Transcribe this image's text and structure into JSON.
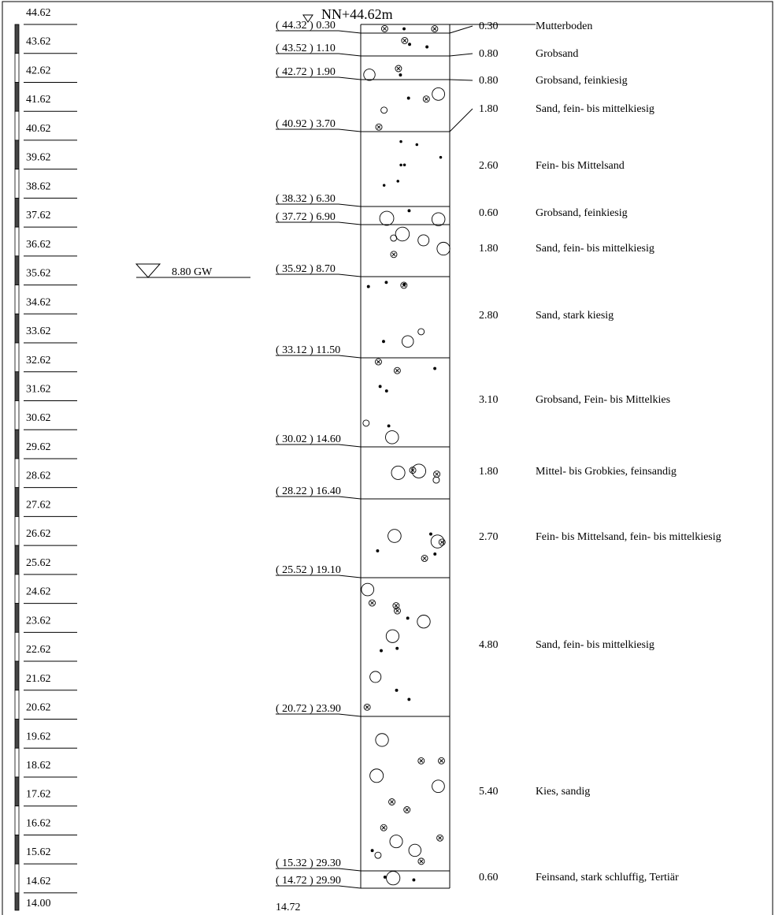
{
  "header": {
    "title": "NN+44.62m"
  },
  "scale": [
    "44.62",
    "43.62",
    "42.62",
    "41.62",
    "40.62",
    "39.62",
    "38.62",
    "37.62",
    "36.62",
    "35.62",
    "34.62",
    "33.62",
    "32.62",
    "31.62",
    "30.62",
    "29.62",
    "28.62",
    "27.62",
    "26.62",
    "25.62",
    "24.62",
    "23.62",
    "22.62",
    "21.62",
    "20.62",
    "19.62",
    "18.62",
    "17.62",
    "16.62",
    "15.62",
    "14.62",
    "14.00"
  ],
  "groundwater": "8.80 GW",
  "layers": [
    {
      "boundary": "( 44.32 ) 0.30",
      "thickness": "0.30",
      "description": "Mutterboden"
    },
    {
      "boundary": "( 43.52 ) 1.10",
      "thickness": "0.80",
      "description": "Grobsand"
    },
    {
      "boundary": "( 42.72 ) 1.90",
      "thickness": "0.80",
      "description": "Grobsand, feinkiesig"
    },
    {
      "boundary": "( 40.92 ) 3.70",
      "thickness": "1.80",
      "description": "Sand, fein- bis mittelkiesig"
    },
    {
      "boundary": "( 38.32 ) 6.30",
      "thickness": "2.60",
      "description": "Fein- bis Mittelsand"
    },
    {
      "boundary": "( 37.72 ) 6.90",
      "thickness": "0.60",
      "description": "Grobsand, feinkiesig"
    },
    {
      "boundary": "( 35.92 ) 8.70",
      "thickness": "1.80",
      "description": "Sand, fein- bis mittelkiesig"
    },
    {
      "boundary": "( 33.12 ) 11.50",
      "thickness": "2.80",
      "description": "Sand, stark kiesig"
    },
    {
      "boundary": "( 30.02 ) 14.60",
      "thickness": "3.10",
      "description": "Grobsand, Fein- bis Mittelkies"
    },
    {
      "boundary": "( 28.22 ) 16.40",
      "thickness": "1.80",
      "description": "Mittel- bis Grobkies, feinsandig"
    },
    {
      "boundary": "( 25.52 ) 19.10",
      "thickness": "2.70",
      "description": "Fein- bis Mittelsand, fein- bis mittelkiesig"
    },
    {
      "boundary": "( 20.72 ) 23.90",
      "thickness": "4.80",
      "description": "Sand, fein- bis mittelkiesig"
    },
    {
      "boundary": "( 15.32 ) 29.30",
      "thickness": "5.40",
      "description": "Kies, sandig"
    },
    {
      "boundary": "( 14.72 ) 29.90",
      "thickness": "0.60",
      "description": "Feinsand, stark schluffig, Tertiär"
    }
  ],
  "bottom": "14.72"
}
